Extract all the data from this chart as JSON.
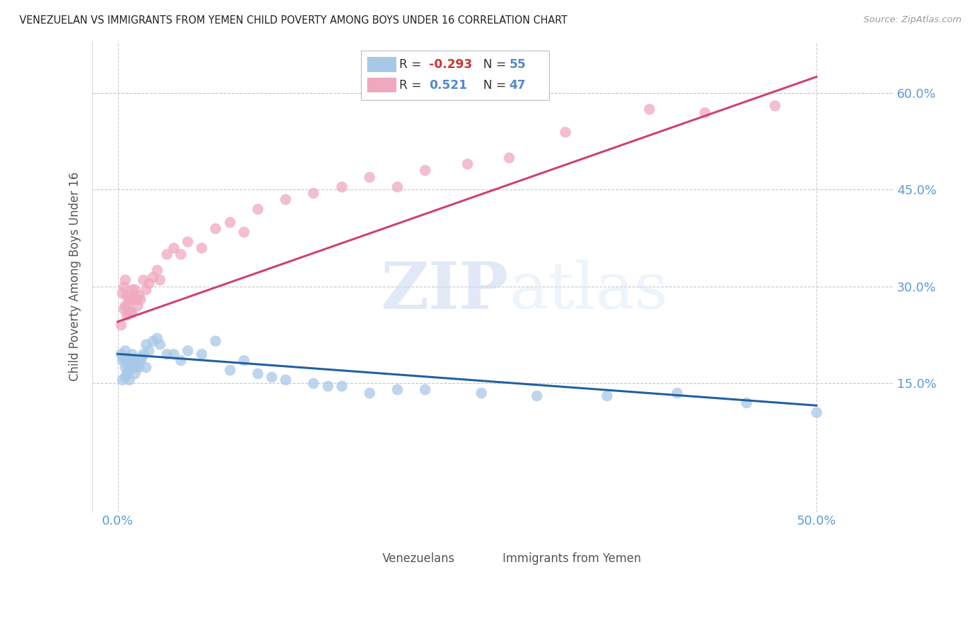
{
  "title": "VENEZUELAN VS IMMIGRANTS FROM YEMEN CHILD POVERTY AMONG BOYS UNDER 16 CORRELATION CHART",
  "source": "Source: ZipAtlas.com",
  "ylabel": "Child Poverty Among Boys Under 16",
  "blue_color": "#a8c8e8",
  "pink_color": "#f0a8be",
  "blue_line_color": "#2060a0",
  "pink_line_color": "#d04070",
  "watermark_zip": "ZIP",
  "watermark_atlas": "atlas",
  "xlim": [
    -0.018,
    0.555
  ],
  "ylim": [
    -0.05,
    0.68
  ],
  "ytick_vals": [
    0.0,
    0.15,
    0.3,
    0.45,
    0.6
  ],
  "ytick_labels": [
    "",
    "15.0%",
    "30.0%",
    "45.0%",
    "60.0%"
  ],
  "xtick_vals": [
    0.0,
    0.5
  ],
  "xtick_labels": [
    "0.0%",
    "50.0%"
  ],
  "blue_line_x0": 0.0,
  "blue_line_y0": 0.195,
  "blue_line_x1": 0.5,
  "blue_line_y1": 0.115,
  "pink_line_x0": 0.0,
  "pink_line_y0": 0.245,
  "pink_line_x1": 0.5,
  "pink_line_y1": 0.625,
  "legend_r_blue": "-0.293",
  "legend_n_blue": "55",
  "legend_r_pink": "0.521",
  "legend_n_pink": "47",
  "legend_label_blue": "Venezuelans",
  "legend_label_pink": "Immigrants from Yemen",
  "blue_x": [
    0.002,
    0.003,
    0.004,
    0.005,
    0.005,
    0.006,
    0.006,
    0.007,
    0.007,
    0.008,
    0.008,
    0.009,
    0.01,
    0.01,
    0.011,
    0.012,
    0.013,
    0.014,
    0.015,
    0.016,
    0.017,
    0.018,
    0.02,
    0.022,
    0.025,
    0.028,
    0.03,
    0.035,
    0.04,
    0.045,
    0.05,
    0.06,
    0.07,
    0.08,
    0.09,
    0.1,
    0.11,
    0.12,
    0.14,
    0.15,
    0.16,
    0.18,
    0.2,
    0.22,
    0.26,
    0.3,
    0.35,
    0.4,
    0.45,
    0.5,
    0.003,
    0.005,
    0.008,
    0.012,
    0.02
  ],
  "blue_y": [
    0.195,
    0.185,
    0.19,
    0.175,
    0.2,
    0.185,
    0.165,
    0.19,
    0.175,
    0.185,
    0.17,
    0.175,
    0.195,
    0.18,
    0.185,
    0.18,
    0.175,
    0.185,
    0.175,
    0.185,
    0.19,
    0.195,
    0.21,
    0.2,
    0.215,
    0.22,
    0.21,
    0.195,
    0.195,
    0.185,
    0.2,
    0.195,
    0.215,
    0.17,
    0.185,
    0.165,
    0.16,
    0.155,
    0.15,
    0.145,
    0.145,
    0.135,
    0.14,
    0.14,
    0.135,
    0.13,
    0.13,
    0.135,
    0.12,
    0.105,
    0.155,
    0.16,
    0.155,
    0.165,
    0.175
  ],
  "pink_x": [
    0.002,
    0.003,
    0.004,
    0.004,
    0.005,
    0.005,
    0.006,
    0.006,
    0.007,
    0.007,
    0.008,
    0.009,
    0.01,
    0.01,
    0.011,
    0.012,
    0.013,
    0.014,
    0.015,
    0.016,
    0.018,
    0.02,
    0.022,
    0.025,
    0.028,
    0.03,
    0.035,
    0.04,
    0.045,
    0.05,
    0.06,
    0.07,
    0.08,
    0.09,
    0.1,
    0.12,
    0.14,
    0.16,
    0.18,
    0.2,
    0.22,
    0.25,
    0.28,
    0.32,
    0.38,
    0.42,
    0.47
  ],
  "pink_y": [
    0.24,
    0.29,
    0.3,
    0.265,
    0.31,
    0.27,
    0.285,
    0.255,
    0.27,
    0.26,
    0.28,
    0.26,
    0.295,
    0.26,
    0.28,
    0.295,
    0.28,
    0.27,
    0.285,
    0.28,
    0.31,
    0.295,
    0.305,
    0.315,
    0.325,
    0.31,
    0.35,
    0.36,
    0.35,
    0.37,
    0.36,
    0.39,
    0.4,
    0.385,
    0.42,
    0.435,
    0.445,
    0.455,
    0.47,
    0.455,
    0.48,
    0.49,
    0.5,
    0.54,
    0.575,
    0.57,
    0.58
  ]
}
